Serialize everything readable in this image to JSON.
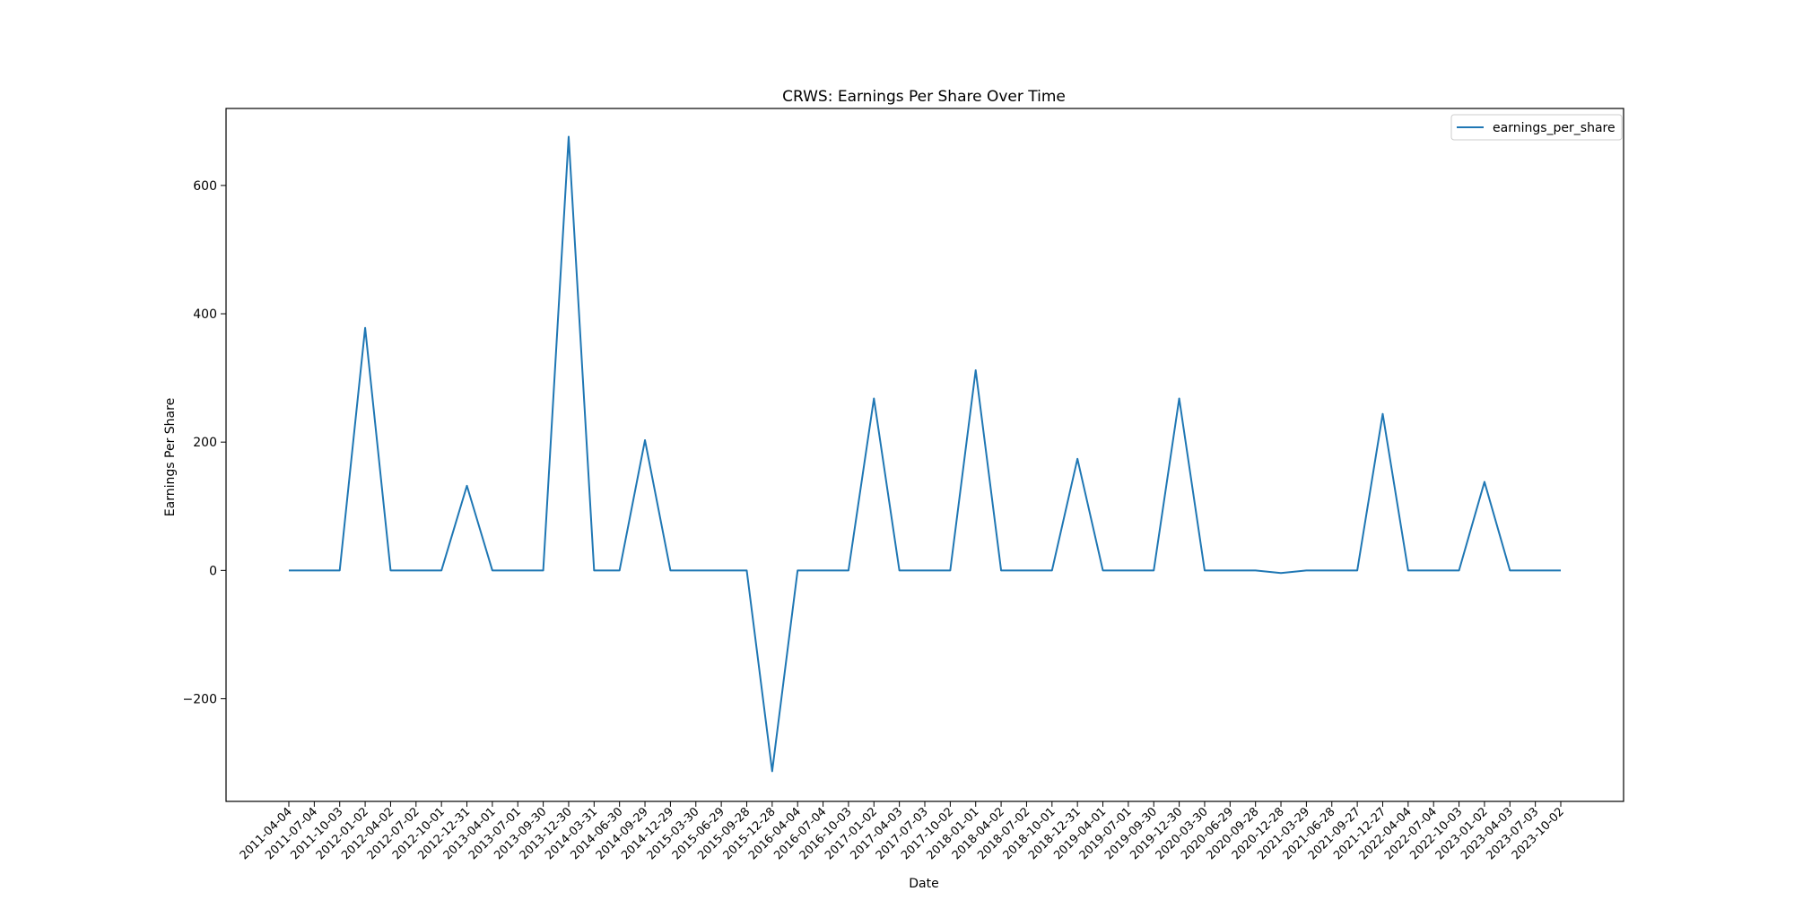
{
  "chart_data": {
    "type": "line",
    "title": "CRWS: Earnings Per Share Over Time",
    "xlabel": "Date",
    "ylabel": "Earnings Per Share",
    "ylim": [
      -360,
      720
    ],
    "yticks": [
      -200,
      0,
      200,
      400,
      600
    ],
    "grid": false,
    "legend_position": "top-right",
    "categories": [
      "2011-04-04",
      "2011-07-04",
      "2011-10-03",
      "2012-01-02",
      "2012-04-02",
      "2012-07-02",
      "2012-10-01",
      "2012-12-31",
      "2013-04-01",
      "2013-07-01",
      "2013-09-30",
      "2013-12-30",
      "2014-03-31",
      "2014-06-30",
      "2014-09-29",
      "2014-12-29",
      "2015-03-30",
      "2015-06-29",
      "2015-09-28",
      "2015-12-28",
      "2016-04-04",
      "2016-07-04",
      "2016-10-03",
      "2017-01-02",
      "2017-04-03",
      "2017-07-03",
      "2017-10-02",
      "2018-01-01",
      "2018-04-02",
      "2018-07-02",
      "2018-10-01",
      "2018-12-31",
      "2019-04-01",
      "2019-07-01",
      "2019-09-30",
      "2019-12-30",
      "2020-03-30",
      "2020-06-29",
      "2020-09-28",
      "2020-12-28",
      "2021-03-29",
      "2021-06-28",
      "2021-09-27",
      "2021-12-27",
      "2022-04-04",
      "2022-07-04",
      "2022-10-03",
      "2023-01-02",
      "2023-04-03",
      "2023-07-03",
      "2023-10-02"
    ],
    "series": [
      {
        "name": "earnings_per_share",
        "color": "#1f77b4",
        "values": [
          0,
          0,
          0,
          378,
          0,
          0,
          0,
          132,
          0,
          0,
          0,
          676,
          0,
          0,
          203,
          0,
          0,
          0,
          0,
          -313,
          0,
          0,
          0,
          268,
          0,
          0,
          0,
          312,
          0,
          0,
          0,
          174,
          0,
          0,
          0,
          268,
          0,
          0,
          0,
          -4,
          0,
          0,
          0,
          244,
          0,
          0,
          0,
          138,
          0,
          0,
          0
        ]
      }
    ]
  }
}
